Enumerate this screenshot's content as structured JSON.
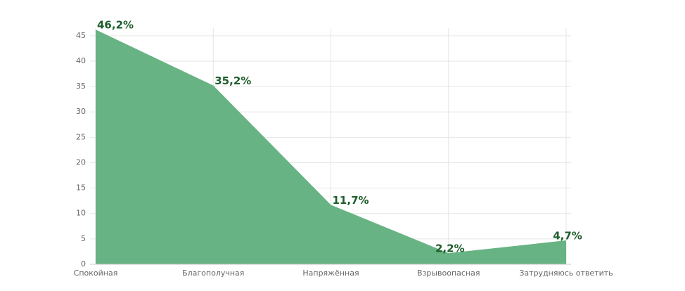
{
  "chart_data": {
    "type": "area",
    "categories": [
      "Спокойная",
      "Благополучная",
      "Напряжённая",
      "Взрывоопасная",
      "Затрудняюсь ответить"
    ],
    "values": [
      46.2,
      35.2,
      11.7,
      2.2,
      4.7
    ],
    "value_labels": [
      "46,2%",
      "35,2%",
      "11,7%",
      "2,2%",
      "4,7%"
    ],
    "color": "#67b383",
    "ylim": [
      0,
      46.5
    ],
    "yticks": [
      0,
      5,
      10,
      15,
      20,
      25,
      30,
      35,
      40,
      45
    ],
    "grid": true
  }
}
